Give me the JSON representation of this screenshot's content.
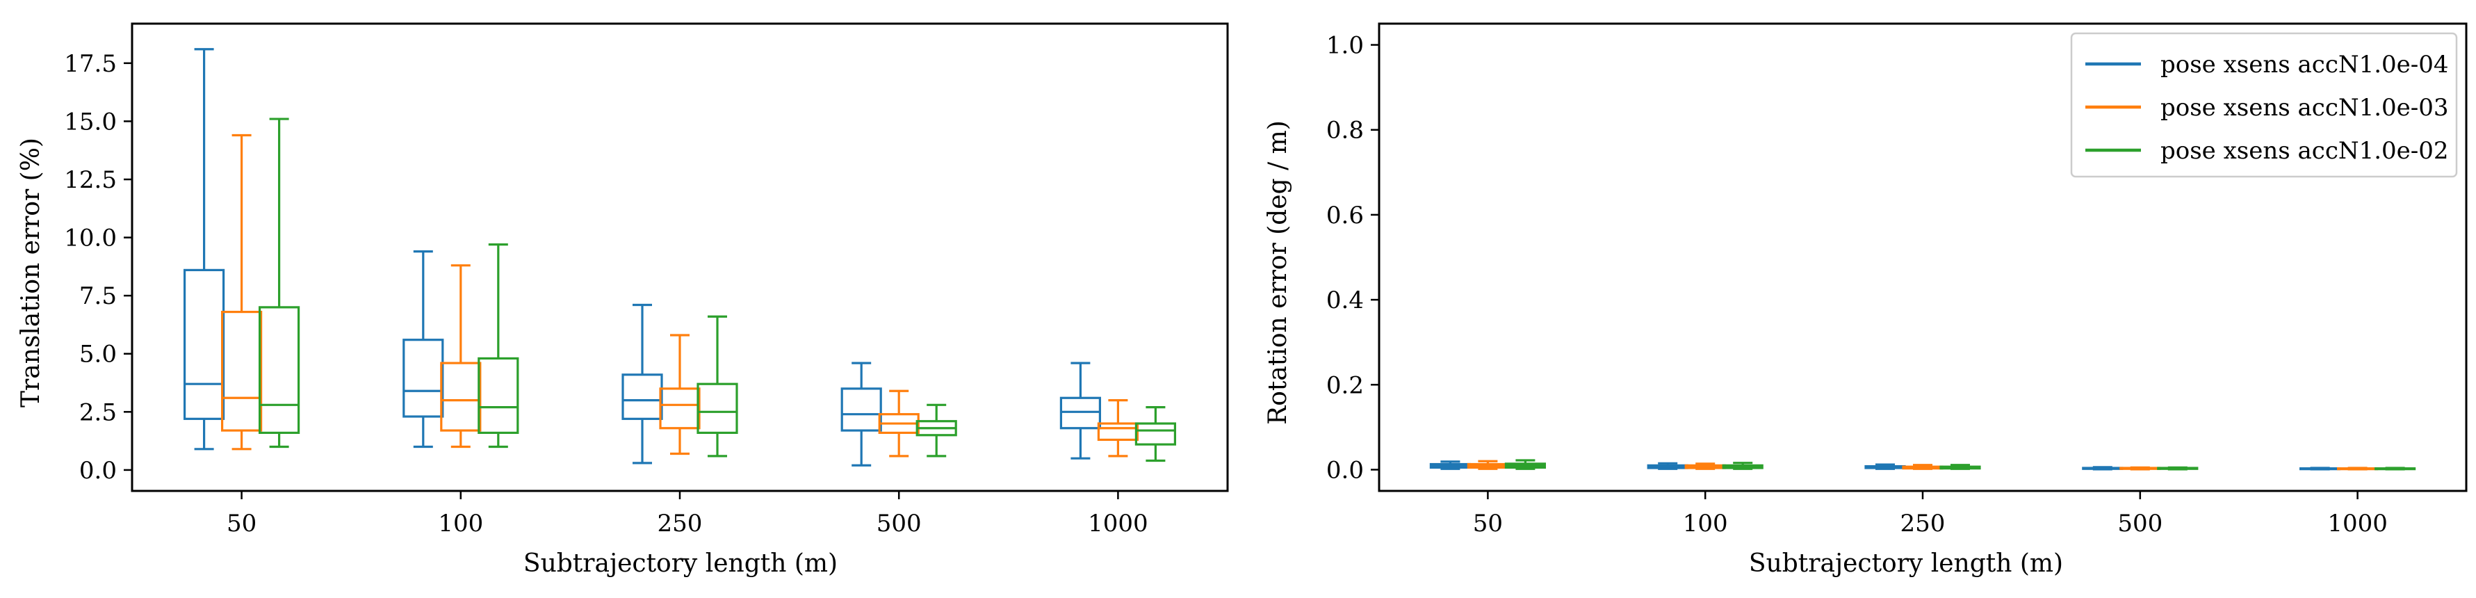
{
  "chart_data": [
    {
      "type": "box",
      "xlabel": "Subtrajectory length (m)",
      "ylabel": "Translation error (%)",
      "ylim": [
        -0.9,
        19.2
      ],
      "yticks": [
        0.0,
        2.5,
        5.0,
        7.5,
        10.0,
        12.5,
        15.0,
        17.5
      ],
      "ytick_labels": [
        "0.0",
        "2.5",
        "5.0",
        "7.5",
        "10.0",
        "12.5",
        "15.0",
        "17.5"
      ],
      "categories": [
        "50",
        "100",
        "250",
        "500",
        "1000"
      ],
      "grid": false,
      "series": [
        {
          "name": "pose xsens accN1.0e-04",
          "color": "#1f77b4",
          "boxes": [
            {
              "whislo": 0.9,
              "q1": 2.2,
              "med": 3.7,
              "q3": 8.6,
              "whishi": 18.1
            },
            {
              "whislo": 1.0,
              "q1": 2.3,
              "med": 3.4,
              "q3": 5.6,
              "whishi": 9.4
            },
            {
              "whislo": 0.3,
              "q1": 2.2,
              "med": 3.0,
              "q3": 4.1,
              "whishi": 7.1
            },
            {
              "whislo": 0.2,
              "q1": 1.7,
              "med": 2.4,
              "q3": 3.5,
              "whishi": 4.6
            },
            {
              "whislo": 0.5,
              "q1": 1.8,
              "med": 2.5,
              "q3": 3.1,
              "whishi": 4.6
            }
          ]
        },
        {
          "name": "pose xsens accN1.0e-03",
          "color": "#ff7f0e",
          "boxes": [
            {
              "whislo": 0.9,
              "q1": 1.7,
              "med": 3.1,
              "q3": 6.8,
              "whishi": 14.4
            },
            {
              "whislo": 1.0,
              "q1": 1.7,
              "med": 3.0,
              "q3": 4.6,
              "whishi": 8.8
            },
            {
              "whislo": 0.7,
              "q1": 1.8,
              "med": 2.8,
              "q3": 3.5,
              "whishi": 5.8
            },
            {
              "whislo": 0.6,
              "q1": 1.6,
              "med": 2.0,
              "q3": 2.4,
              "whishi": 3.4
            },
            {
              "whislo": 0.6,
              "q1": 1.3,
              "med": 1.8,
              "q3": 2.0,
              "whishi": 3.0
            }
          ]
        },
        {
          "name": "pose xsens accN1.0e-02",
          "color": "#2ca02c",
          "boxes": [
            {
              "whislo": 1.0,
              "q1": 1.6,
              "med": 2.8,
              "q3": 7.0,
              "whishi": 15.1
            },
            {
              "whislo": 1.0,
              "q1": 1.6,
              "med": 2.7,
              "q3": 4.8,
              "whishi": 9.7
            },
            {
              "whislo": 0.6,
              "q1": 1.6,
              "med": 2.5,
              "q3": 3.7,
              "whishi": 6.6
            },
            {
              "whislo": 0.6,
              "q1": 1.5,
              "med": 1.8,
              "q3": 2.1,
              "whishi": 2.8
            },
            {
              "whislo": 0.4,
              "q1": 1.1,
              "med": 1.7,
              "q3": 2.0,
              "whishi": 2.7
            }
          ]
        }
      ]
    },
    {
      "type": "box",
      "xlabel": "Subtrajectory length (m)",
      "ylabel": "Rotation error (deg / m)",
      "ylim": [
        -0.05,
        1.05
      ],
      "yticks": [
        0.0,
        0.2,
        0.4,
        0.6,
        0.8,
        1.0
      ],
      "ytick_labels": [
        "0.0",
        "0.2",
        "0.4",
        "0.6",
        "0.8",
        "1.0"
      ],
      "categories": [
        "50",
        "100",
        "250",
        "500",
        "1000"
      ],
      "grid": false,
      "legend_position": "top-right",
      "series": [
        {
          "name": "pose xsens accN1.0e-04",
          "color": "#1f77b4",
          "boxes": [
            {
              "whislo": 0.002,
              "q1": 0.005,
              "med": 0.009,
              "q3": 0.013,
              "whishi": 0.019
            },
            {
              "whislo": 0.002,
              "q1": 0.004,
              "med": 0.007,
              "q3": 0.01,
              "whishi": 0.015
            },
            {
              "whislo": 0.002,
              "q1": 0.004,
              "med": 0.006,
              "q3": 0.008,
              "whishi": 0.012
            },
            {
              "whislo": 0.001,
              "q1": 0.002,
              "med": 0.003,
              "q3": 0.004,
              "whishi": 0.006
            },
            {
              "whislo": 0.001,
              "q1": 0.002,
              "med": 0.002,
              "q3": 0.003,
              "whishi": 0.004
            }
          ]
        },
        {
          "name": "pose xsens accN1.0e-03",
          "color": "#ff7f0e",
          "boxes": [
            {
              "whislo": 0.002,
              "q1": 0.005,
              "med": 0.009,
              "q3": 0.013,
              "whishi": 0.02
            },
            {
              "whislo": 0.002,
              "q1": 0.004,
              "med": 0.007,
              "q3": 0.01,
              "whishi": 0.014
            },
            {
              "whislo": 0.002,
              "q1": 0.003,
              "med": 0.005,
              "q3": 0.007,
              "whishi": 0.011
            },
            {
              "whislo": 0.001,
              "q1": 0.002,
              "med": 0.003,
              "q3": 0.004,
              "whishi": 0.005
            },
            {
              "whislo": 0.001,
              "q1": 0.002,
              "med": 0.002,
              "q3": 0.003,
              "whishi": 0.004
            }
          ]
        },
        {
          "name": "pose xsens accN1.0e-02",
          "color": "#2ca02c",
          "boxes": [
            {
              "whislo": 0.002,
              "q1": 0.005,
              "med": 0.009,
              "q3": 0.014,
              "whishi": 0.022
            },
            {
              "whislo": 0.002,
              "q1": 0.004,
              "med": 0.007,
              "q3": 0.01,
              "whishi": 0.016
            },
            {
              "whislo": 0.002,
              "q1": 0.003,
              "med": 0.005,
              "q3": 0.007,
              "whishi": 0.011
            },
            {
              "whislo": 0.001,
              "q1": 0.002,
              "med": 0.003,
              "q3": 0.004,
              "whishi": 0.005
            },
            {
              "whislo": 0.001,
              "q1": 0.002,
              "med": 0.002,
              "q3": 0.003,
              "whishi": 0.004
            }
          ]
        }
      ]
    }
  ]
}
